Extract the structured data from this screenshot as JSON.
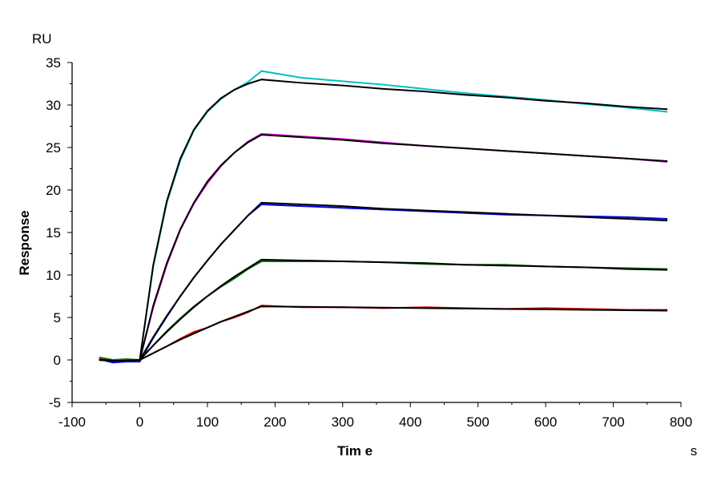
{
  "chart_data": {
    "type": "line",
    "title": "",
    "xlabel": "Tim e",
    "xunit": "s",
    "ylabel": "Response",
    "yunit": "RU",
    "xlim": [
      -100,
      800
    ],
    "ylim": [
      -5,
      35
    ],
    "xticks": [
      -100,
      0,
      100,
      200,
      300,
      400,
      500,
      600,
      700,
      800
    ],
    "yticks": [
      -5,
      0,
      5,
      10,
      15,
      20,
      25,
      30,
      35
    ],
    "grid": false,
    "legend": "none",
    "x": [
      -60,
      -40,
      -20,
      0,
      20,
      40,
      60,
      80,
      100,
      120,
      140,
      160,
      180,
      240,
      300,
      360,
      420,
      480,
      540,
      600,
      660,
      720,
      780
    ],
    "series": [
      {
        "color": "#00c0c0",
        "values": [
          0.1,
          -0.2,
          -0.1,
          0,
          11.0,
          18.5,
          23.5,
          27.0,
          29.2,
          30.7,
          31.8,
          32.7,
          34.0,
          33.2,
          32.8,
          32.4,
          31.9,
          31.4,
          31.0,
          30.6,
          30.1,
          29.7,
          29.2
        ],
        "fit": [
          0,
          -0.1,
          -0.1,
          0,
          11.2,
          18.7,
          23.7,
          27.1,
          29.3,
          30.8,
          31.8,
          32.5,
          33.0,
          32.6,
          32.3,
          31.9,
          31.6,
          31.2,
          30.9,
          30.5,
          30.2,
          29.8,
          29.5
        ]
      },
      {
        "color": "#e000e0",
        "values": [
          0.2,
          -0.1,
          -0.1,
          0,
          6.2,
          11.2,
          15.3,
          18.4,
          20.8,
          22.8,
          24.4,
          25.7,
          26.6,
          26.3,
          26.0,
          25.6,
          25.2,
          24.9,
          24.6,
          24.3,
          24.0,
          23.7,
          23.3
        ],
        "fit": [
          0,
          -0.1,
          -0.1,
          0,
          6.4,
          11.4,
          15.4,
          18.5,
          21.0,
          22.9,
          24.4,
          25.6,
          26.5,
          26.2,
          25.9,
          25.5,
          25.2,
          24.9,
          24.6,
          24.3,
          24.0,
          23.7,
          23.4
        ]
      },
      {
        "color": "#0000e0",
        "values": [
          0.1,
          -0.3,
          -0.2,
          -0.2,
          2.6,
          5.1,
          7.5,
          9.7,
          11.7,
          13.6,
          15.3,
          17.0,
          18.3,
          18.1,
          17.9,
          17.7,
          17.5,
          17.3,
          17.1,
          17.0,
          16.9,
          16.8,
          16.6
        ],
        "fit": [
          0,
          -0.1,
          -0.1,
          0,
          2.7,
          5.2,
          7.5,
          9.7,
          11.7,
          13.6,
          15.3,
          17.0,
          18.5,
          18.3,
          18.1,
          17.8,
          17.6,
          17.4,
          17.2,
          17.0,
          16.8,
          16.6,
          16.4
        ]
      },
      {
        "color": "#007000",
        "values": [
          0.3,
          0.0,
          0.1,
          0,
          1.7,
          3.4,
          4.9,
          6.3,
          7.5,
          8.6,
          9.6,
          10.7,
          11.6,
          11.6,
          11.6,
          11.5,
          11.3,
          11.2,
          11.2,
          11.0,
          10.9,
          10.8,
          10.7
        ],
        "fit": [
          0,
          -0.1,
          -0.1,
          0,
          1.7,
          3.3,
          4.8,
          6.2,
          7.5,
          8.7,
          9.8,
          10.8,
          11.8,
          11.7,
          11.6,
          11.5,
          11.4,
          11.2,
          11.1,
          11.0,
          10.9,
          10.7,
          10.6
        ]
      },
      {
        "color": "#e00000",
        "values": [
          0.1,
          -0.1,
          -0.1,
          0,
          0.8,
          1.6,
          2.5,
          3.3,
          3.8,
          4.5,
          5.0,
          5.6,
          6.4,
          6.2,
          6.2,
          6.1,
          6.2,
          6.1,
          6.0,
          6.1,
          6.0,
          5.9,
          5.9
        ],
        "fit": [
          0,
          -0.1,
          -0.1,
          0,
          0.8,
          1.6,
          2.4,
          3.1,
          3.8,
          4.5,
          5.1,
          5.7,
          6.3,
          6.25,
          6.2,
          6.15,
          6.1,
          6.05,
          6.0,
          5.95,
          5.9,
          5.85,
          5.8
        ]
      }
    ],
    "fit_color": "#000000"
  }
}
